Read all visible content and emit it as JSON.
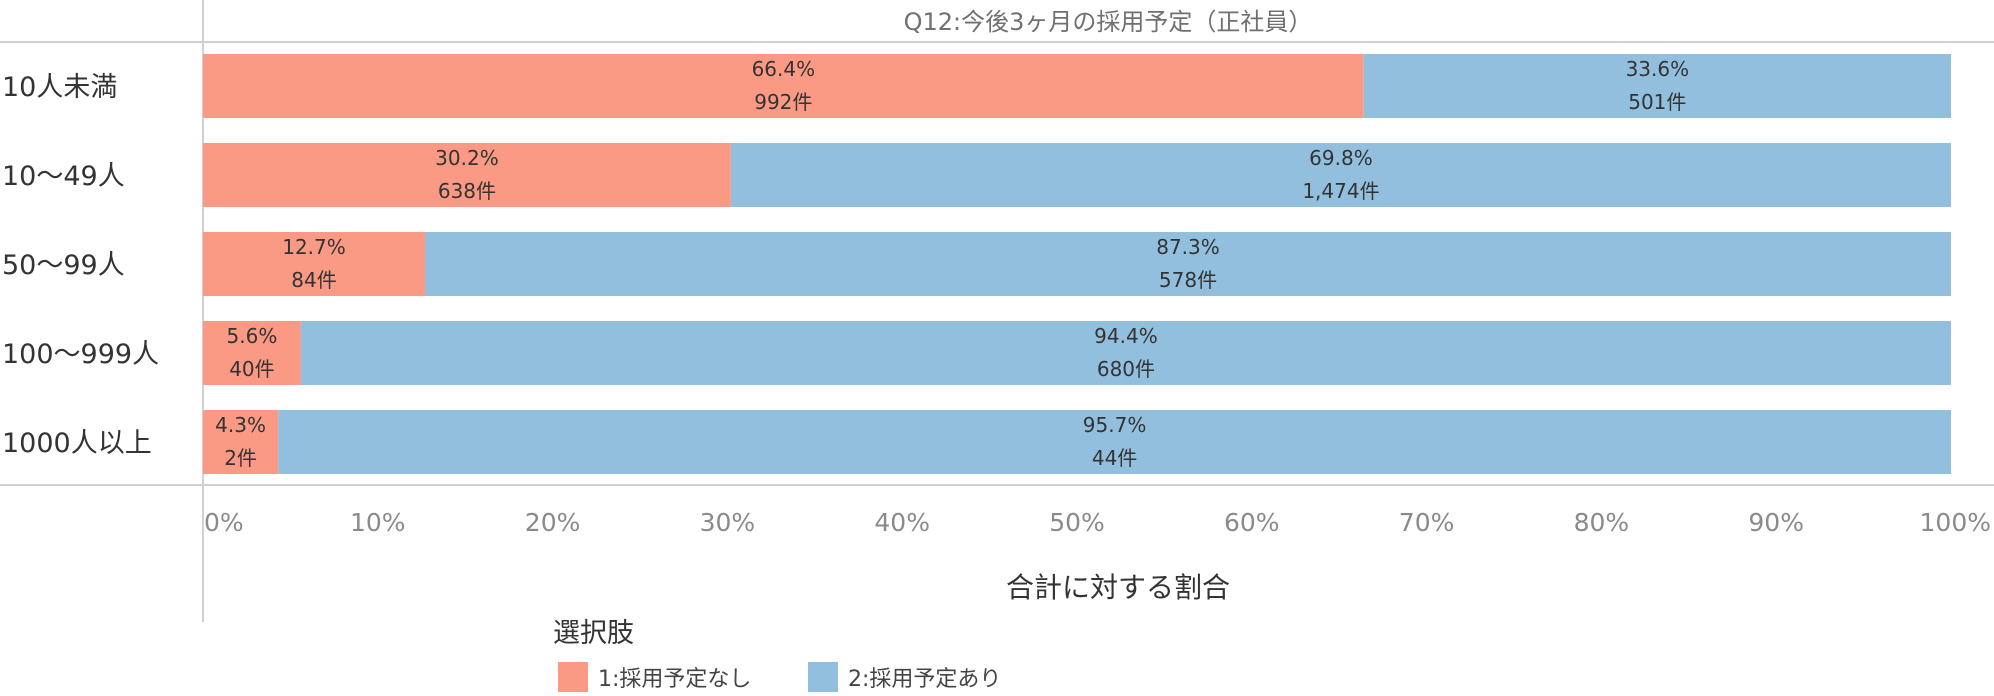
{
  "chart_data": {
    "type": "bar",
    "orientation": "horizontal",
    "stacked": true,
    "title": "Q12:今後3ヶ月の採用予定（正社員）",
    "xlabel": "合計に対する割合",
    "ylabel": "",
    "xlim": [
      0,
      100
    ],
    "ticks": [
      "0%",
      "10%",
      "20%",
      "30%",
      "40%",
      "50%",
      "60%",
      "70%",
      "80%",
      "90%",
      "100%"
    ],
    "categories": [
      "10人未満",
      "10～49人",
      "50～99人",
      "100～999人",
      "1000人以上"
    ],
    "series": [
      {
        "name": "1:採用予定なし",
        "color": "#fa9a85",
        "values": [
          66.4,
          30.2,
          12.7,
          5.6,
          4.3
        ],
        "pct_labels": [
          "66.4%",
          "30.2%",
          "12.7%",
          "5.6%",
          "4.3%"
        ],
        "count_labels": [
          "992件",
          "638件",
          "84件",
          "40件",
          "2件"
        ]
      },
      {
        "name": "2:採用予定あり",
        "color": "#93bfdf",
        "values": [
          33.6,
          69.8,
          87.3,
          94.4,
          95.7
        ],
        "pct_labels": [
          "33.6%",
          "69.8%",
          "87.3%",
          "94.4%",
          "95.7%"
        ],
        "count_labels": [
          "501件",
          "1,474件",
          "578件",
          "680件",
          "44件"
        ]
      }
    ],
    "legend": {
      "title": "選択肢",
      "position": "bottom"
    },
    "grid": false
  }
}
